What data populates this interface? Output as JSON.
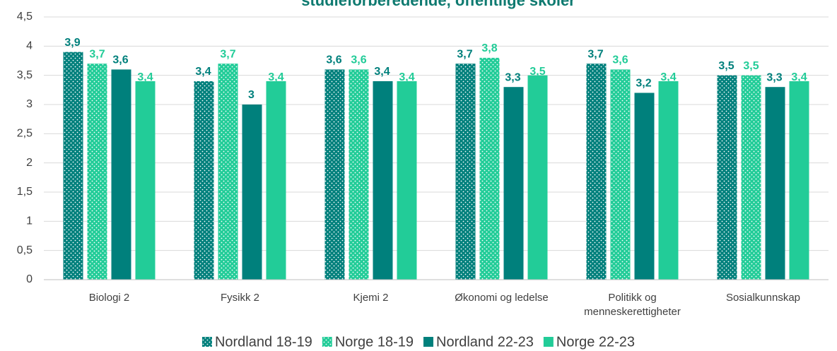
{
  "chart_data": {
    "type": "bar",
    "title": "studieforberedende, offentlige skoler",
    "categories": [
      "Biologi 2",
      "Fysikk 2",
      "Kjemi 2",
      "Økonomi og ledelse",
      "Politikk og menneskerettigheter",
      "Sosialkunnskap"
    ],
    "series": [
      {
        "name": "Nordland 18-19",
        "color": "#00807c",
        "pattern": "dots",
        "values": [
          3.9,
          3.4,
          3.6,
          3.7,
          3.7,
          3.5
        ],
        "value_labels": [
          "3,9",
          "3,4",
          "3,6",
          "3,7",
          "3,7",
          "3,5"
        ]
      },
      {
        "name": "Norge 18-19",
        "color": "#22cc98",
        "pattern": "dots",
        "values": [
          3.7,
          3.7,
          3.6,
          3.8,
          3.6,
          3.5
        ],
        "value_labels": [
          "3,7",
          "3,7",
          "3,6",
          "3,8",
          "3,6",
          "3,5"
        ]
      },
      {
        "name": "Nordland 22-23",
        "color": "#00807c",
        "values": [
          3.6,
          3.0,
          3.4,
          3.3,
          3.2,
          3.3
        ],
        "value_labels": [
          "3,6",
          "3",
          "3,4",
          "3,3",
          "3,2",
          "3,3"
        ]
      },
      {
        "name": "Norge 22-23",
        "color": "#22cc98",
        "values": [
          3.4,
          3.4,
          3.4,
          3.5,
          3.4,
          3.4
        ],
        "value_labels": [
          "3,4",
          "3,4",
          "3,4",
          "3,5",
          "3,4",
          "3,4"
        ]
      }
    ],
    "ylim": [
      0,
      4.5
    ],
    "yticks": [
      0,
      {
        "value": 0.5,
        "label": "0,5"
      },
      1,
      {
        "value": 1.5,
        "label": "1,5"
      },
      2,
      {
        "value": 2.5,
        "label": "2,5"
      },
      3,
      {
        "value": 3.5,
        "label": "3,5"
      },
      4,
      {
        "value": 4.5,
        "label": "4,5"
      }
    ],
    "grid": true,
    "legend": "bottom"
  }
}
